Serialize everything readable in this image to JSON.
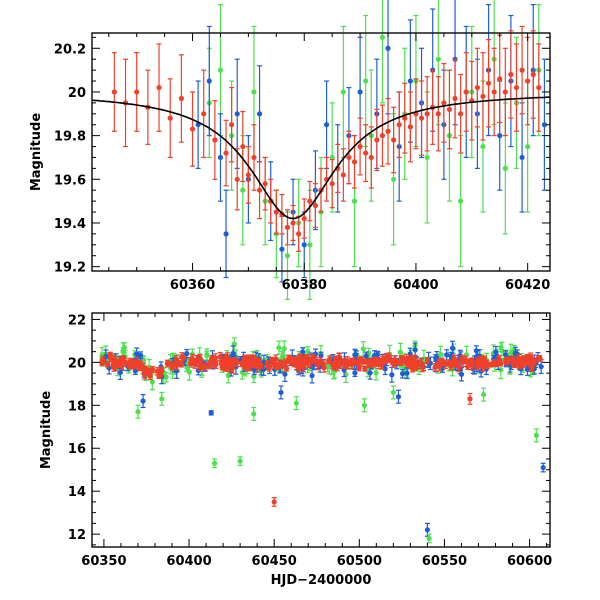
{
  "colors": {
    "blue": "#1f5fd6",
    "green": "#4ee04e",
    "red": "#f0402a",
    "model": "#000000"
  },
  "chart_data": [
    {
      "type": "scatter",
      "xlabel": "",
      "ylabel": "Magnitude",
      "xlim": [
        60342,
        60424
      ],
      "ylim": [
        20.27,
        19.18
      ],
      "y_inverted": true,
      "xticks": [
        60360,
        60380,
        60400,
        60420
      ],
      "yticks": [
        19.2,
        19.4,
        19.6,
        19.8,
        20,
        20.2
      ],
      "ytick_labels": [
        "19.2",
        "19.4",
        "19.6",
        "19.8",
        "20",
        "20.2"
      ],
      "model_curve": {
        "type": "line",
        "color": "#000000",
        "peak_x": 60378,
        "peak_mag": 19.42,
        "baseline_mag": 20.0,
        "width_days": 9.5
      },
      "series": [
        {
          "color": "#f0402a",
          "points": [
            [
              60346,
              20.0,
              0.18
            ],
            [
              60348,
              19.95,
              0.2
            ],
            [
              60350,
              20.0,
              0.18
            ],
            [
              60352,
              19.93,
              0.17
            ],
            [
              60354,
              20.02,
              0.2
            ],
            [
              60356,
              19.88,
              0.18
            ],
            [
              60358,
              19.97,
              0.2
            ],
            [
              60360,
              19.83,
              0.17
            ],
            [
              60362,
              19.9,
              0.2
            ],
            [
              60364,
              19.78,
              0.18
            ],
            [
              60366,
              19.72,
              0.15
            ],
            [
              60367,
              19.85,
              0.17
            ],
            [
              60368,
              19.6,
              0.14
            ],
            [
              60369,
              19.75,
              0.16
            ],
            [
              60370,
              19.62,
              0.13
            ],
            [
              60371,
              19.7,
              0.15
            ],
            [
              60372,
              19.55,
              0.13
            ],
            [
              60373,
              19.58,
              0.12
            ],
            [
              60374,
              19.5,
              0.1
            ],
            [
              60375,
              19.45,
              0.1
            ],
            [
              60376,
              19.44,
              0.09
            ],
            [
              60377,
              19.38,
              0.08
            ],
            [
              60378,
              19.4,
              0.08
            ],
            [
              60379,
              19.35,
              0.08
            ],
            [
              60380,
              19.42,
              0.09
            ],
            [
              60381,
              19.5,
              0.09
            ],
            [
              60382,
              19.48,
              0.1
            ],
            [
              60383,
              19.55,
              0.1
            ],
            [
              60384,
              19.6,
              0.1
            ],
            [
              60385,
              19.58,
              0.11
            ],
            [
              60386,
              19.65,
              0.11
            ],
            [
              60387,
              19.62,
              0.12
            ],
            [
              60388,
              19.7,
              0.12
            ],
            [
              60389,
              19.68,
              0.12
            ],
            [
              60390,
              19.75,
              0.13
            ],
            [
              60391,
              19.72,
              0.13
            ],
            [
              60392,
              19.7,
              0.14
            ],
            [
              60393,
              19.78,
              0.14
            ],
            [
              60394,
              19.8,
              0.14
            ],
            [
              60395,
              19.82,
              0.15
            ],
            [
              60396,
              19.78,
              0.15
            ],
            [
              60397,
              19.85,
              0.15
            ],
            [
              60398,
              19.88,
              0.16
            ],
            [
              60399,
              19.84,
              0.16
            ],
            [
              60400,
              19.9,
              0.16
            ],
            [
              60401,
              19.88,
              0.17
            ],
            [
              60402,
              19.9,
              0.17
            ],
            [
              60403,
              19.93,
              0.17
            ],
            [
              60404,
              19.9,
              0.17
            ],
            [
              60405,
              19.95,
              0.18
            ],
            [
              60406,
              19.92,
              0.18
            ],
            [
              60407,
              19.97,
              0.18
            ],
            [
              60408,
              19.9,
              0.18
            ],
            [
              60409,
              20.0,
              0.18
            ],
            [
              60410,
              19.96,
              0.18
            ],
            [
              60411,
              20.02,
              0.18
            ],
            [
              60412,
              19.98,
              0.2
            ],
            [
              60413,
              20.04,
              0.2
            ],
            [
              60414,
              20.0,
              0.2
            ],
            [
              60415,
              20.06,
              0.2
            ],
            [
              60416,
              20.0,
              0.2
            ],
            [
              60417,
              20.08,
              0.2
            ],
            [
              60418,
              20.02,
              0.2
            ],
            [
              60419,
              20.1,
              0.2
            ],
            [
              60420,
              20.05,
              0.2
            ],
            [
              60421,
              20.08,
              0.2
            ],
            [
              60422,
              20.02,
              0.2
            ]
          ]
        },
        {
          "color": "#1f5fd6",
          "points": [
            [
              60361,
              19.85,
              0.2
            ],
            [
              60363,
              20.05,
              0.25
            ],
            [
              60365,
              19.7,
              0.2
            ],
            [
              60366,
              19.35,
              0.2
            ],
            [
              60368,
              19.9,
              0.25
            ],
            [
              60370,
              19.6,
              0.2
            ],
            [
              60372,
              19.9,
              0.22
            ],
            [
              60374,
              19.5,
              0.18
            ],
            [
              60376,
              19.28,
              0.15
            ],
            [
              60378,
              19.45,
              0.15
            ],
            [
              60380,
              19.3,
              0.15
            ],
            [
              60382,
              19.55,
              0.18
            ],
            [
              60384,
              19.85,
              0.2
            ],
            [
              60386,
              19.65,
              0.2
            ],
            [
              60388,
              19.8,
              0.22
            ],
            [
              60390,
              20.0,
              0.25
            ],
            [
              60393,
              19.9,
              0.25
            ],
            [
              60395,
              20.2,
              0.3
            ],
            [
              60397,
              19.75,
              0.25
            ],
            [
              60399,
              20.05,
              0.28
            ],
            [
              60401,
              19.95,
              0.25
            ],
            [
              60403,
              20.1,
              0.28
            ],
            [
              60405,
              19.85,
              0.25
            ],
            [
              60407,
              20.15,
              0.3
            ],
            [
              60409,
              20.0,
              0.3
            ],
            [
              60411,
              19.9,
              0.25
            ],
            [
              60413,
              20.1,
              0.3
            ],
            [
              60415,
              19.8,
              0.25
            ],
            [
              60417,
              20.05,
              0.3
            ],
            [
              60419,
              19.7,
              0.25
            ],
            [
              60421,
              20.1,
              0.3
            ],
            [
              60423,
              19.85,
              0.3
            ]
          ]
        },
        {
          "color": "#4ee04e",
          "points": [
            [
              60363,
              19.95,
              0.25
            ],
            [
              60365,
              20.1,
              0.3
            ],
            [
              60367,
              19.8,
              0.25
            ],
            [
              60369,
              19.55,
              0.25
            ],
            [
              60371,
              20.0,
              0.3
            ],
            [
              60373,
              19.5,
              0.2
            ],
            [
              60375,
              19.35,
              0.2
            ],
            [
              60377,
              19.25,
              0.2
            ],
            [
              60379,
              19.4,
              0.2
            ],
            [
              60381,
              19.3,
              0.25
            ],
            [
              60383,
              19.45,
              0.25
            ],
            [
              60385,
              19.7,
              0.25
            ],
            [
              60387,
              20.0,
              0.3
            ],
            [
              60389,
              19.5,
              0.3
            ],
            [
              60391,
              20.05,
              0.3
            ],
            [
              60392,
              19.8,
              0.3
            ],
            [
              60394,
              20.25,
              0.3
            ],
            [
              60396,
              19.6,
              0.3
            ],
            [
              60398,
              19.9,
              0.3
            ],
            [
              60400,
              20.05,
              0.3
            ],
            [
              60402,
              19.7,
              0.3
            ],
            [
              60404,
              20.15,
              0.3
            ],
            [
              60406,
              19.8,
              0.3
            ],
            [
              60408,
              19.5,
              0.3
            ],
            [
              60410,
              20.0,
              0.3
            ],
            [
              60412,
              19.75,
              0.3
            ],
            [
              60414,
              20.15,
              0.3
            ],
            [
              60416,
              19.65,
              0.3
            ],
            [
              60418,
              19.95,
              0.3
            ],
            [
              60420,
              19.75,
              0.3
            ],
            [
              60422,
              20.1,
              0.3
            ]
          ]
        }
      ]
    },
    {
      "type": "scatter",
      "xlabel": "HJD−2400000",
      "ylabel": "Magnitude",
      "xlim": [
        60343,
        60612
      ],
      "ylim": [
        22.3,
        11.4
      ],
      "y_inverted": true,
      "xticks": [
        60350,
        60400,
        60450,
        60500,
        60550,
        60600
      ],
      "yticks": [
        12,
        14,
        16,
        18,
        20,
        22
      ],
      "ytick_labels": [
        "12",
        "14",
        "16",
        "18",
        "20",
        "22"
      ],
      "outliers": {
        "red": [
          [
            60450,
            13.5,
            0.2
          ],
          [
            60565,
            18.3,
            0.25
          ]
        ],
        "blue": [
          [
            60540,
            12.2,
            0.3
          ],
          [
            60608,
            15.1,
            0.2
          ],
          [
            60413,
            17.65,
            0.1
          ],
          [
            60373,
            18.2,
            0.3
          ],
          [
            60454,
            18.6,
            0.3
          ],
          [
            60523,
            18.4,
            0.3
          ]
        ],
        "green": [
          [
            60541,
            11.8,
            0.2
          ],
          [
            60415,
            15.3,
            0.2
          ],
          [
            60430,
            15.4,
            0.2
          ],
          [
            60604,
            16.6,
            0.3
          ],
          [
            60370,
            17.7,
            0.3
          ],
          [
            60438,
            17.6,
            0.3
          ],
          [
            60384,
            18.3,
            0.3
          ],
          [
            60463,
            18.1,
            0.3
          ],
          [
            60503,
            18.0,
            0.3
          ],
          [
            60573,
            18.5,
            0.3
          ],
          [
            60520,
            18.6,
            0.3
          ]
        ]
      },
      "series": [
        {
          "color": "#4ee04e",
          "baseline": 20.05,
          "scatter": 0.55,
          "error": 0.3,
          "count": 150
        },
        {
          "color": "#1f5fd6",
          "baseline": 20.0,
          "scatter": 0.45,
          "error": 0.25,
          "count": 160
        },
        {
          "color": "#f0402a",
          "baseline": 20.0,
          "scatter": 0.22,
          "error": 0.15,
          "count": 330
        }
      ]
    }
  ]
}
